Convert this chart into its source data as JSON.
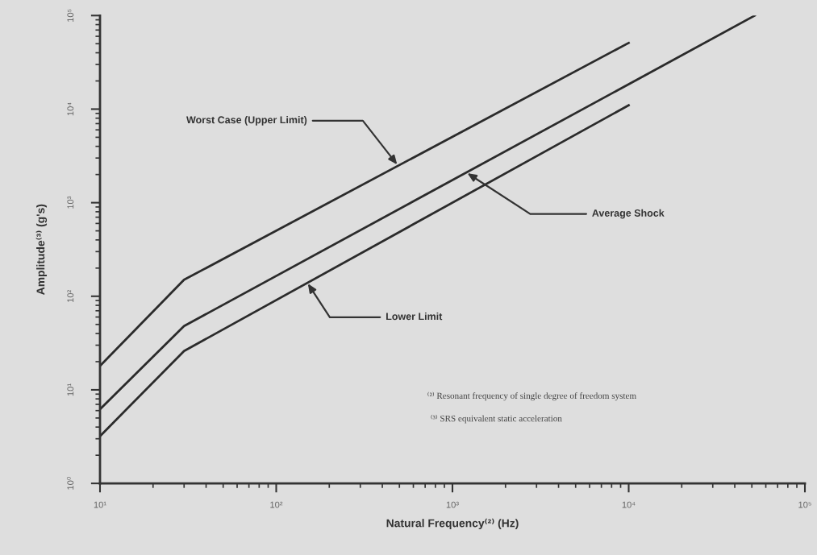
{
  "chart_data": {
    "type": "line",
    "xlabel": "Natural Frequency⁽²⁾ (Hz)",
    "ylabel": "Amplitude⁽³⁾ (g's)",
    "log": "xy",
    "xlim": [
      10,
      100000
    ],
    "ylim": [
      1,
      100000
    ],
    "xticks": [
      {
        "value": 10,
        "label": "10¹"
      },
      {
        "value": 100,
        "label": "10²"
      },
      {
        "value": 1000,
        "label": "10³"
      },
      {
        "value": 10000,
        "label": "10⁴"
      },
      {
        "value": 100000,
        "label": "10⁵"
      }
    ],
    "yticks": [
      {
        "value": 1,
        "label": "10⁰"
      },
      {
        "value": 10,
        "label": "10¹"
      },
      {
        "value": 100,
        "label": "10²"
      },
      {
        "value": 1000,
        "label": "10³"
      },
      {
        "value": 10000,
        "label": "10⁴"
      },
      {
        "value": 100000,
        "label": "10⁵"
      }
    ],
    "line_style": "solid",
    "annotations": [
      {
        "text": "Worst Case (Upper Limit)",
        "x": 490,
        "y": 2500
      },
      {
        "text": "Average Shock",
        "x": 1200,
        "y": 2100
      },
      {
        "text": "Lower Limit",
        "x": 150,
        "y": 140
      },
      "⁽²⁾ Resonant frequency of single degree of freedom system",
      "⁽³⁾ SRS equivalent static acceleration"
    ],
    "series": [
      {
        "color": "#2b2b2b",
        "x": [
          10,
          30,
          10000
        ],
        "values": [
          18,
          150,
          51000
        ]
      },
      {
        "color": "#2b2b2b",
        "x": [
          10,
          30,
          52000
        ],
        "values": [
          6.2,
          48,
          100000
        ]
      },
      {
        "color": "#2b2b2b",
        "x": [
          10,
          30,
          10000
        ],
        "values": [
          3.2,
          26,
          11000
        ]
      }
    ]
  }
}
